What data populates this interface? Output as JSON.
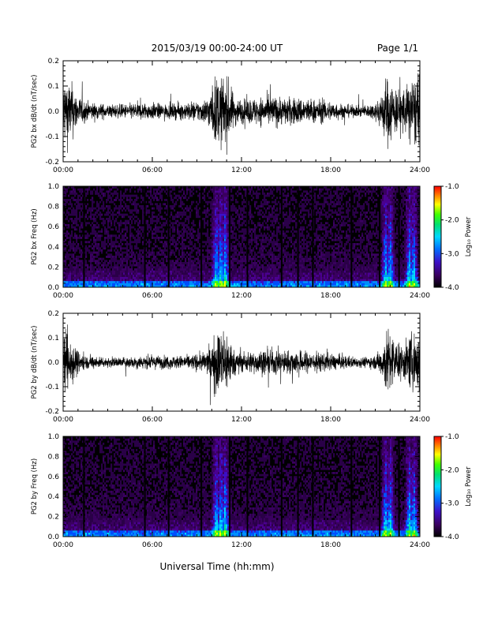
{
  "header": {
    "title": "2015/03/19   00:00-24:00 UT",
    "page": "Page 1/1"
  },
  "footer": {
    "xlabel": "Universal Time (hh:mm)"
  },
  "chart_data": [
    {
      "type": "line",
      "ylabel": "PG2 bx dB/dt (nT/sec)",
      "xlim": [
        0,
        24
      ],
      "ylim": [
        -0.2,
        0.2
      ],
      "xticks": [
        "00:00",
        "06:00",
        "12:00",
        "18:00",
        "24:00"
      ],
      "yticks": [
        "-0.2",
        "-0.1",
        "0.0",
        "0.1",
        "0.2"
      ],
      "color": "#000000",
      "envelope": {
        "hour": [
          0,
          0.25,
          0.5,
          1,
          1.5,
          2,
          3,
          4,
          5,
          6,
          7,
          8,
          9,
          9.5,
          10,
          10.2,
          10.5,
          11,
          11.3,
          11.5,
          12,
          13,
          14,
          15,
          16,
          17,
          18,
          19,
          20,
          21,
          21.5,
          21.7,
          22,
          22.5,
          23,
          23.5,
          24
        ],
        "amplitude": [
          0.2,
          0.2,
          0.18,
          0.09,
          0.06,
          0.05,
          0.04,
          0.04,
          0.05,
          0.05,
          0.04,
          0.05,
          0.06,
          0.07,
          0.12,
          0.2,
          0.2,
          0.2,
          0.14,
          0.09,
          0.07,
          0.08,
          0.09,
          0.08,
          0.08,
          0.07,
          0.06,
          0.04,
          0.03,
          0.05,
          0.12,
          0.2,
          0.2,
          0.12,
          0.15,
          0.2,
          0.2
        ]
      }
    },
    {
      "type": "heatmap",
      "ylabel": "PG2 bx Freq (Hz)",
      "xlim": [
        0,
        24
      ],
      "ylim": [
        0,
        1
      ],
      "xticks": [
        "00:00",
        "06:00",
        "12:00",
        "18:00",
        "24:00"
      ],
      "yticks": [
        "0.0",
        "0.2",
        "0.4",
        "0.6",
        "0.8",
        "1.0"
      ],
      "colorbar": {
        "label": "Log₁₀ Power",
        "range": [
          -4,
          -1
        ],
        "ticks": [
          "-1.0",
          "-2.0",
          "-3.0",
          "-4.0"
        ]
      },
      "bright_hours": [
        10.3,
        10.6,
        10.9,
        21.7,
        22.0,
        23.3,
        23.6
      ],
      "dark_gap_hours": [
        1.4,
        5.5,
        7.1,
        9.3,
        11.2,
        12.4,
        14.7,
        15.8,
        16.8,
        19.4,
        21.3,
        22.6
      ]
    },
    {
      "type": "line",
      "ylabel": "PG2 by dB/dt (nT/sec)",
      "xlim": [
        0,
        24
      ],
      "ylim": [
        -0.2,
        0.2
      ],
      "xticks": [
        "00:00",
        "06:00",
        "12:00",
        "18:00",
        "24:00"
      ],
      "yticks": [
        "-0.2",
        "-0.1",
        "0.0",
        "0.1",
        "0.2"
      ],
      "color": "#000000",
      "envelope": {
        "hour": [
          0,
          0.25,
          0.5,
          1,
          1.5,
          2,
          3,
          4,
          5,
          6,
          7,
          8,
          9,
          9.5,
          10,
          10.2,
          10.5,
          11,
          11.3,
          11.5,
          12,
          13,
          14,
          15,
          16,
          17,
          18,
          19,
          20,
          21,
          21.5,
          21.7,
          22,
          22.5,
          23,
          23.5,
          24
        ],
        "amplitude": [
          0.2,
          0.2,
          0.15,
          0.07,
          0.04,
          0.04,
          0.03,
          0.03,
          0.04,
          0.04,
          0.04,
          0.04,
          0.05,
          0.06,
          0.1,
          0.2,
          0.2,
          0.2,
          0.13,
          0.07,
          0.06,
          0.07,
          0.08,
          0.07,
          0.07,
          0.06,
          0.05,
          0.04,
          0.03,
          0.04,
          0.1,
          0.2,
          0.2,
          0.1,
          0.12,
          0.18,
          0.2
        ]
      }
    },
    {
      "type": "heatmap",
      "ylabel": "PG2 by Freq (Hz)",
      "xlim": [
        0,
        24
      ],
      "ylim": [
        0,
        1
      ],
      "xticks": [
        "00:00",
        "06:00",
        "12:00",
        "18:00",
        "24:00"
      ],
      "yticks": [
        "0.0",
        "0.2",
        "0.4",
        "0.6",
        "0.8",
        "1.0"
      ],
      "colorbar": {
        "label": "Log₁₀ Power",
        "range": [
          -4,
          -1
        ],
        "ticks": [
          "-1.0",
          "-2.0",
          "-3.0",
          "-4.0"
        ]
      },
      "bright_hours": [
        10.3,
        10.6,
        10.9,
        21.7,
        22.0,
        23.3,
        23.6
      ],
      "dark_gap_hours": [
        1.4,
        5.5,
        7.1,
        9.3,
        11.2,
        12.4,
        14.7,
        15.8,
        16.8,
        19.4,
        21.3,
        22.6
      ]
    }
  ]
}
